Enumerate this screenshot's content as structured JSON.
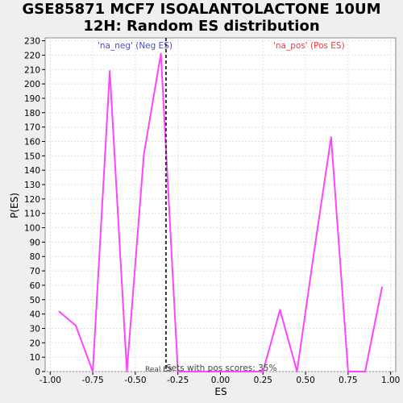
{
  "chart_data": {
    "type": "line",
    "title_line1": "GSE85871 MCF7 ISOALANTOLACTONE 10UM",
    "title_line2": "12H: Random ES distribution",
    "xlabel": "ES",
    "ylabel": "P(ES)",
    "xlim": [
      -1.03,
      1.03
    ],
    "ylim": [
      0,
      232
    ],
    "xticks": [
      -1.0,
      -0.75,
      -0.5,
      -0.25,
      0.0,
      0.25,
      0.5,
      0.75,
      1.0
    ],
    "xtick_labels": [
      "-1.00",
      "-0.75",
      "-0.50",
      "-0.25",
      "0.00",
      "0.25",
      "0.50",
      "0.75",
      "1.00"
    ],
    "yticks": [
      0,
      10,
      20,
      30,
      40,
      50,
      60,
      70,
      80,
      90,
      100,
      110,
      120,
      130,
      140,
      150,
      160,
      170,
      180,
      190,
      200,
      210,
      220,
      230
    ],
    "ytick_labels": [
      "0",
      "10",
      "20",
      "30",
      "40",
      "50",
      "60",
      "70",
      "80",
      "90",
      "100",
      "110",
      "120",
      "130",
      "140",
      "150",
      "160",
      "170",
      "180",
      "190",
      "200",
      "210",
      "220",
      "230"
    ],
    "grid": true,
    "series": [
      {
        "color": "#ff44ff",
        "x": [
          -0.95,
          -0.85,
          -0.75,
          -0.65,
          -0.55,
          -0.45,
          -0.35,
          -0.25,
          -0.15,
          -0.05,
          0.05,
          0.15,
          0.25,
          0.35,
          0.45,
          0.55,
          0.65,
          0.75,
          0.85,
          0.95
        ],
        "y": [
          42,
          32,
          0,
          209,
          0,
          151,
          221,
          0,
          0,
          0,
          0,
          0,
          0,
          43,
          0,
          83,
          163,
          0,
          0,
          59
        ]
      }
    ],
    "real_es": -0.32,
    "annotations": {
      "neg": "'na_neg' (Neg ES)",
      "pos": "'na_pos' (Pos ES)",
      "real_es_label": "Real ES",
      "pos_scores": "Sets with pos scores: 35%"
    },
    "colors": {
      "line": "#ff44ff",
      "real_es_line": "#333333",
      "neg_text": "#4a4ac8",
      "pos_text": "#e04040",
      "grid": "#e0e0e0"
    }
  }
}
